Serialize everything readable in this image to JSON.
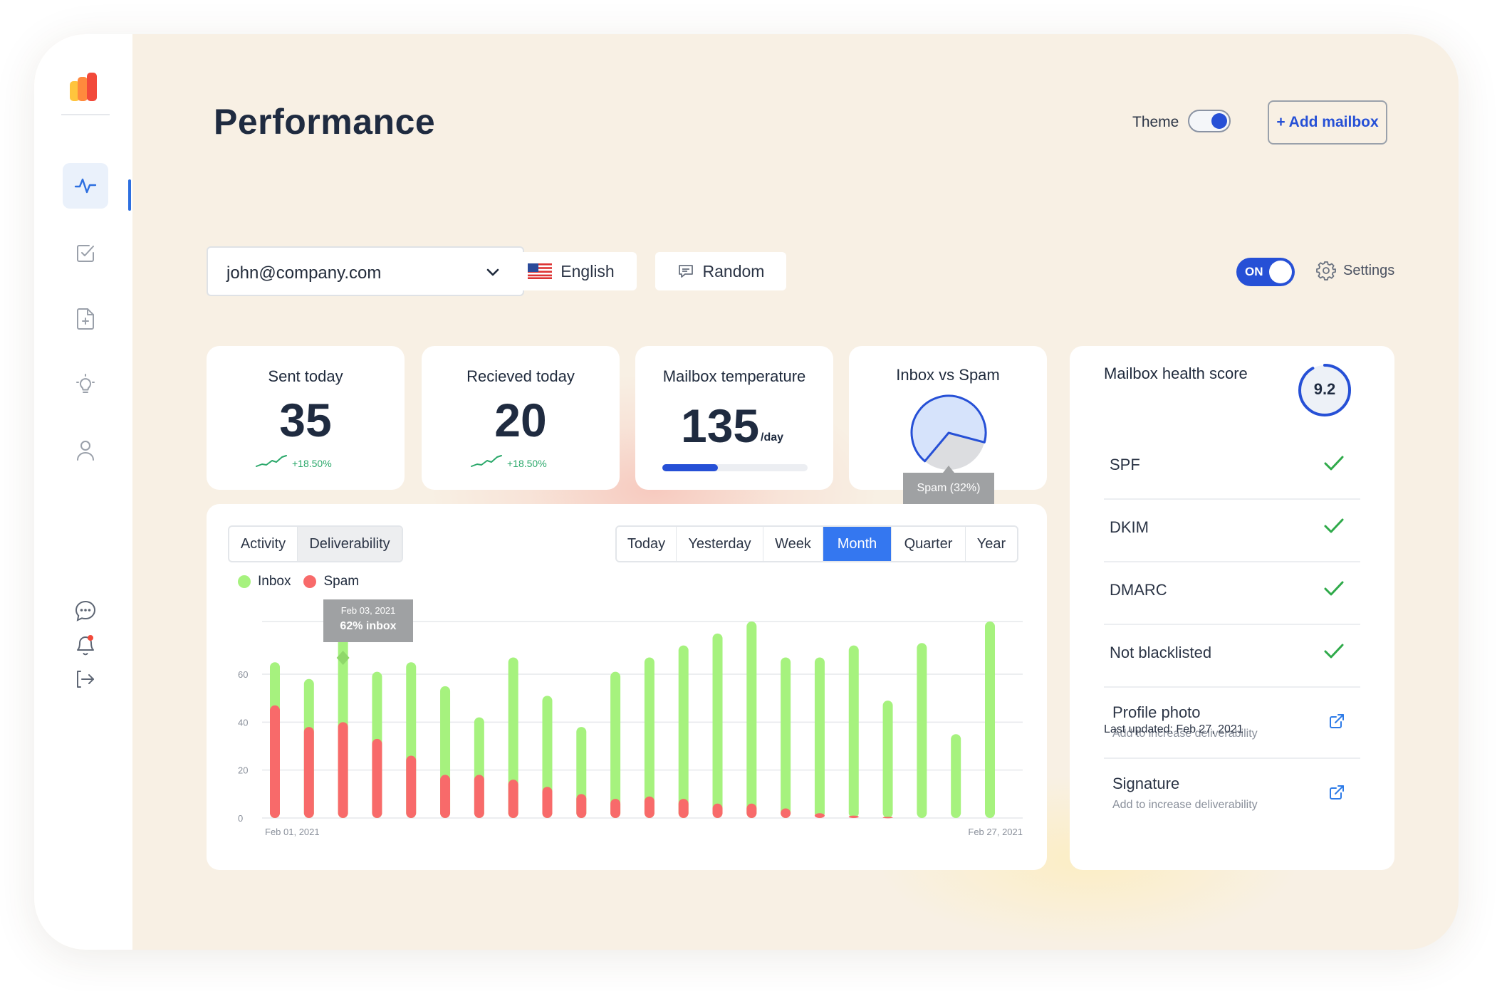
{
  "header": {
    "title": "Performance",
    "theme_label": "Theme",
    "add_mailbox_label": "+ Add mailbox"
  },
  "controls": {
    "mailbox_value": "john@company.com",
    "language_label": "English",
    "mode_label": "Random",
    "toggle_label": "ON",
    "settings_label": "Settings"
  },
  "stats": {
    "sent": {
      "title": "Sent today",
      "value": "35",
      "change": "+18.50%"
    },
    "received": {
      "title": "Recieved today",
      "value": "20",
      "change": "+18.50%"
    },
    "temperature": {
      "title": "Mailbox temperature",
      "value": "135",
      "unit": "/day",
      "progress": 0.38
    },
    "inbox_spam": {
      "title": "Inbox vs Spam",
      "spam_label": "Spam (32%)",
      "spam_fraction": 0.32
    }
  },
  "chart_card": {
    "view_tabs": [
      "Activity",
      "Deliverability"
    ],
    "selected_view": "Deliverability",
    "period_tabs": [
      "Today",
      "Yesterday",
      "Week",
      "Month",
      "Quarter",
      "Year"
    ],
    "selected_period": "Month",
    "tooltip": {
      "date": "Feb 03, 2021",
      "value": "62% inbox"
    }
  },
  "chart_data": {
    "type": "bar",
    "stacked": false,
    "series": [
      {
        "name": "Inbox",
        "color": "#a6f27e",
        "values": [
          65,
          58,
          77,
          61,
          65,
          55,
          42,
          67,
          51,
          38,
          61,
          67,
          72,
          77,
          82,
          67,
          67,
          72,
          49,
          73,
          35,
          82
        ]
      },
      {
        "name": "Spam",
        "color": "#f86a6a",
        "values": [
          47,
          38,
          40,
          33,
          26,
          18,
          18,
          16,
          13,
          10,
          8,
          9,
          8,
          6,
          6,
          4,
          2,
          1,
          0.5,
          0,
          0,
          0
        ]
      }
    ],
    "x_start_label": "Feb 01, 2021",
    "x_end_label": "Feb 27, 2021",
    "y_ticks": [
      "0",
      "20",
      "40",
      "60"
    ],
    "ylim": [
      0,
      82
    ],
    "grid": true,
    "legend": "top-left"
  },
  "health": {
    "title": "Mailbox health score",
    "score": "9.2",
    "score_fraction": 0.92,
    "checks": [
      {
        "label": "SPF"
      },
      {
        "label": "DKIM"
      },
      {
        "label": "DMARC"
      },
      {
        "label": "Not blacklisted"
      }
    ],
    "actions": [
      {
        "label": "Profile photo",
        "sub": "Add to increase deliverability"
      },
      {
        "label": "Signature",
        "sub": "Add to increase deliverability"
      }
    ],
    "last_updated": "Last updated: Feb 27, 2021"
  },
  "colors": {
    "accent": "#2650d6",
    "inbox": "#a6f27e",
    "spam": "#f86a6a",
    "check": "#2faa4a",
    "background": "#f8f0e4"
  },
  "icons": {
    "sidebar": [
      "activity-icon",
      "check-square-icon",
      "file-plus-icon",
      "lightbulb-icon",
      "user-icon",
      "chat-icon",
      "bell-icon",
      "logout-icon"
    ]
  }
}
